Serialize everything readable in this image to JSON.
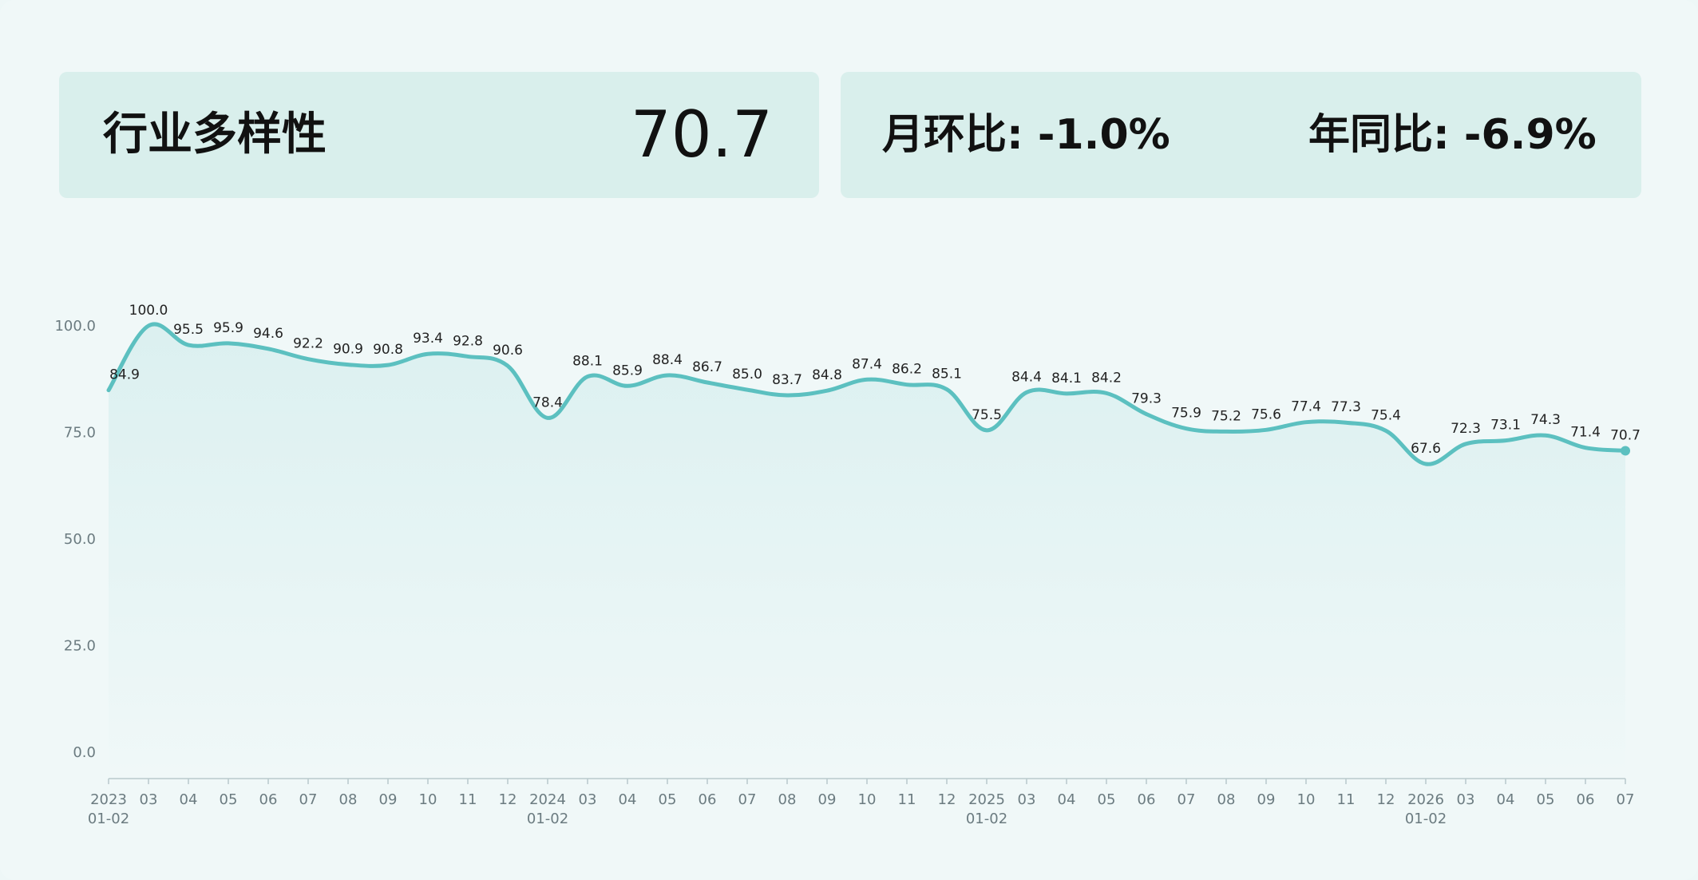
{
  "header": {
    "title": "行业多样性",
    "value": "70.7",
    "mom_label": "月环比",
    "mom_value": "-1.0%",
    "yoy_label": "年同比",
    "yoy_value": "-6.9%",
    "sep": ": "
  },
  "colors": {
    "line": "#5cc0c0",
    "card": "#d9efec",
    "background": "#f0f8f8"
  },
  "chart_data": {
    "type": "area",
    "x": [
      "2023\n01-02",
      "03",
      "04",
      "05",
      "06",
      "07",
      "08",
      "09",
      "10",
      "11",
      "12",
      "2024\n01-02",
      "03",
      "04",
      "05",
      "06",
      "07",
      "08",
      "09",
      "10",
      "11",
      "12",
      "2025\n01-02",
      "03",
      "04",
      "05",
      "06",
      "07",
      "08",
      "09",
      "10",
      "11",
      "12",
      "2026\n01-02",
      "03",
      "04",
      "05",
      "06",
      "07"
    ],
    "series": [
      {
        "values": [
          84.9,
          100.0,
          95.5,
          95.9,
          94.6,
          92.2,
          90.9,
          90.8,
          93.4,
          92.8,
          90.6,
          78.4,
          88.1,
          85.9,
          88.4,
          86.7,
          85.0,
          83.7,
          84.8,
          87.4,
          86.2,
          85.1,
          75.5,
          84.4,
          84.1,
          84.2,
          79.3,
          75.9,
          75.2,
          75.6,
          77.4,
          77.3,
          75.4,
          67.6,
          72.3,
          73.1,
          74.3,
          71.4,
          70.7
        ]
      }
    ],
    "yticks": [
      "0.0",
      "25.0",
      "50.0",
      "75.0",
      "100.0"
    ],
    "ylim": [
      0,
      100
    ],
    "grid": false,
    "legend": "none"
  }
}
